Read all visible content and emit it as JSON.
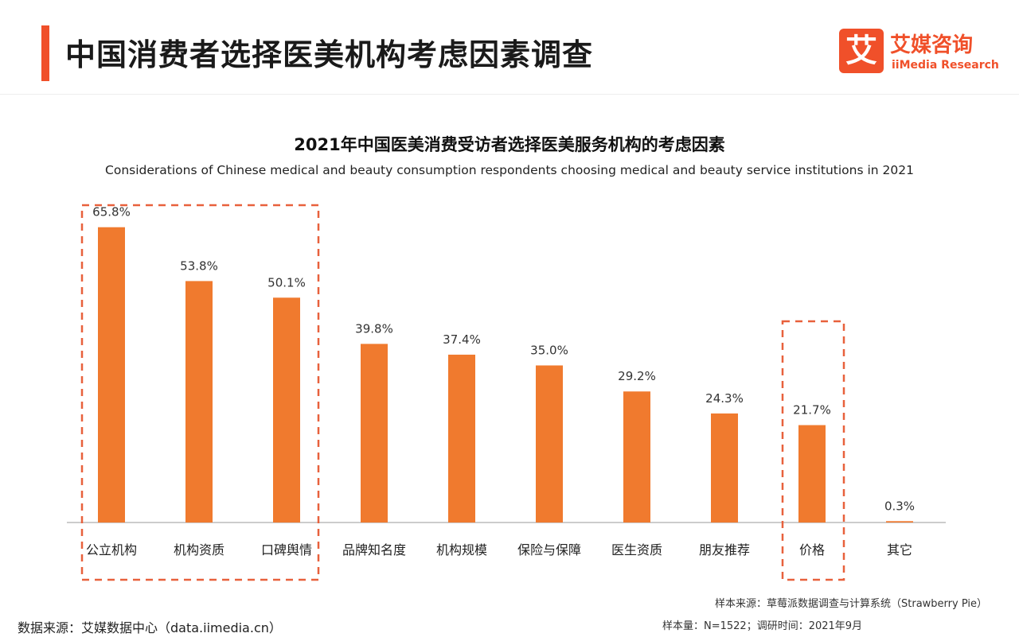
{
  "header": {
    "title": "中国消费者选择医美机构考虑因素调查",
    "logo_cn": "艾媒咨询",
    "logo_en": "iiMedia Research",
    "logo_mark": "艾"
  },
  "colors": {
    "accent": "#f0502a",
    "bar": "#f07a2e",
    "highlight_box": "#e8613c",
    "axis": "#999999"
  },
  "footer": {
    "source": "数据来源：艾媒数据中心（data.iimedia.cn）",
    "sample_source": "样本来源：草莓派数据调查与计算系统（Strawberry Pie）",
    "sample_info": "样本量：N=1522；调研时间：2021年9月"
  },
  "chart_data": {
    "type": "bar",
    "title": "2021年中国医美消费受访者选择医美服务机构的考虑因素",
    "subtitle": "Considerations of Chinese medical and beauty consumption respondents choosing medical and beauty service institutions in 2021",
    "categories": [
      "公立机构",
      "机构资质",
      "口碑舆情",
      "品牌知名度",
      "机构规模",
      "保险与保障",
      "医生资质",
      "朋友推荐",
      "价格",
      "其它"
    ],
    "values": [
      65.8,
      53.8,
      50.1,
      39.8,
      37.4,
      35.0,
      29.2,
      24.3,
      21.7,
      0.3
    ],
    "value_labels": [
      "65.8%",
      "53.8%",
      "50.1%",
      "39.8%",
      "37.4%",
      "35.0%",
      "29.2%",
      "24.3%",
      "21.7%",
      "0.3%"
    ],
    "ylim": [
      0,
      70
    ],
    "grid": false,
    "highlight_groups": [
      [
        0,
        2
      ],
      [
        8,
        8
      ]
    ]
  }
}
